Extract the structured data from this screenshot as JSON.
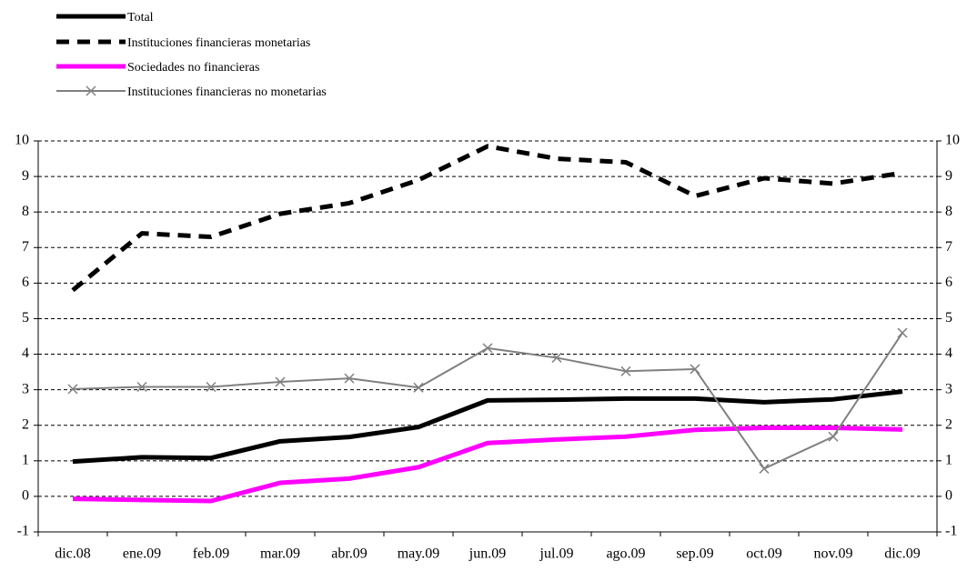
{
  "chart_data": {
    "type": "line",
    "categories": [
      "dic.08",
      "ene.09",
      "feb.09",
      "mar.09",
      "abr.09",
      "may.09",
      "jun.09",
      "jul.09",
      "ago.09",
      "sep.09",
      "oct.09",
      "nov.09",
      "dic.09"
    ],
    "series": [
      {
        "name": "Total",
        "color": "#000000",
        "style": "solid",
        "width": 5,
        "values": [
          0.98,
          1.1,
          1.08,
          1.55,
          1.67,
          1.95,
          2.7,
          2.72,
          2.75,
          2.75,
          2.65,
          2.73,
          2.95
        ]
      },
      {
        "name": "Instituciones financieras monetarias",
        "color": "#000000",
        "style": "dashed",
        "width": 5,
        "values": [
          5.8,
          7.4,
          7.3,
          7.95,
          8.25,
          8.9,
          9.85,
          9.5,
          9.4,
          8.45,
          8.95,
          8.8,
          9.1
        ]
      },
      {
        "name": "Sociedades no financieras",
        "color": "#ff00ff",
        "style": "solid",
        "width": 5,
        "values": [
          -0.07,
          -0.1,
          -0.13,
          0.38,
          0.5,
          0.82,
          1.5,
          1.6,
          1.68,
          1.87,
          1.93,
          1.93,
          1.88
        ]
      },
      {
        "name": "Instituciones financieras no monetarias",
        "color": "#808080",
        "style": "solid",
        "width": 2,
        "marker": "x",
        "values": [
          3.02,
          3.08,
          3.08,
          3.22,
          3.32,
          3.06,
          4.17,
          3.9,
          3.52,
          3.58,
          0.78,
          1.68,
          4.6
        ]
      }
    ],
    "ylim": [
      -1,
      10
    ],
    "yticks": [
      -1,
      0,
      1,
      2,
      3,
      4,
      5,
      6,
      7,
      8,
      9,
      10
    ],
    "y2lim": [
      -1,
      10
    ],
    "y2ticks": [
      -1,
      0,
      1,
      2,
      3,
      4,
      5,
      6,
      7,
      8,
      9,
      10
    ],
    "grid": true,
    "legend": "top-left"
  }
}
